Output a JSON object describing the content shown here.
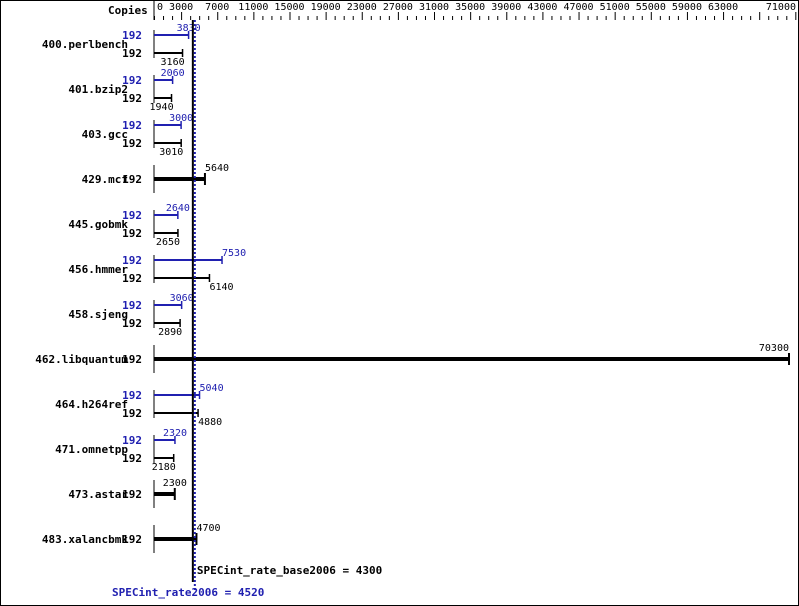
{
  "chart_data": {
    "type": "bar",
    "orientation": "horizontal",
    "copies_header": "Copies",
    "xlim": [
      0,
      71000
    ],
    "tick_labels": [
      0,
      3000,
      7000,
      11000,
      15000,
      19000,
      23000,
      27000,
      31000,
      35000,
      39000,
      43000,
      47000,
      51000,
      55000,
      59000,
      63000,
      71000
    ],
    "colors": {
      "base": "#000000",
      "peak": "#2020b0"
    },
    "benchmarks": [
      {
        "name": "400.perlbench",
        "copies_peak": "192",
        "copies_base": "192",
        "peak": 3830,
        "base": 3160
      },
      {
        "name": "401.bzip2",
        "copies_peak": "192",
        "copies_base": "192",
        "peak": 2060,
        "base": 1940
      },
      {
        "name": "403.gcc",
        "copies_peak": "192",
        "copies_base": "192",
        "peak": 3000,
        "base": 3010
      },
      {
        "name": "429.mcf",
        "copies_base": "192",
        "base": 5640
      },
      {
        "name": "445.gobmk",
        "copies_peak": "192",
        "copies_base": "192",
        "peak": 2640,
        "base": 2650
      },
      {
        "name": "456.hmmer",
        "copies_peak": "192",
        "copies_base": "192",
        "peak": 7530,
        "base": 6140
      },
      {
        "name": "458.sjeng",
        "copies_peak": "192",
        "copies_base": "192",
        "peak": 3060,
        "base": 2890
      },
      {
        "name": "462.libquantum",
        "copies_base": "192",
        "base": 70300
      },
      {
        "name": "464.h264ref",
        "copies_peak": "192",
        "copies_base": "192",
        "peak": 5040,
        "base": 4880
      },
      {
        "name": "471.omnetpp",
        "copies_peak": "192",
        "copies_base": "192",
        "peak": 2320,
        "base": 2180
      },
      {
        "name": "473.astar",
        "copies_base": "192",
        "base": 2300
      },
      {
        "name": "483.xalancbmk",
        "copies_base": "192",
        "base": 4700
      }
    ],
    "summary_base": {
      "label": "SPECint_rate_base2006 = 4300",
      "value": 4300
    },
    "summary_peak": {
      "label": "SPECint_rate2006 = 4520",
      "value": 4520
    }
  }
}
